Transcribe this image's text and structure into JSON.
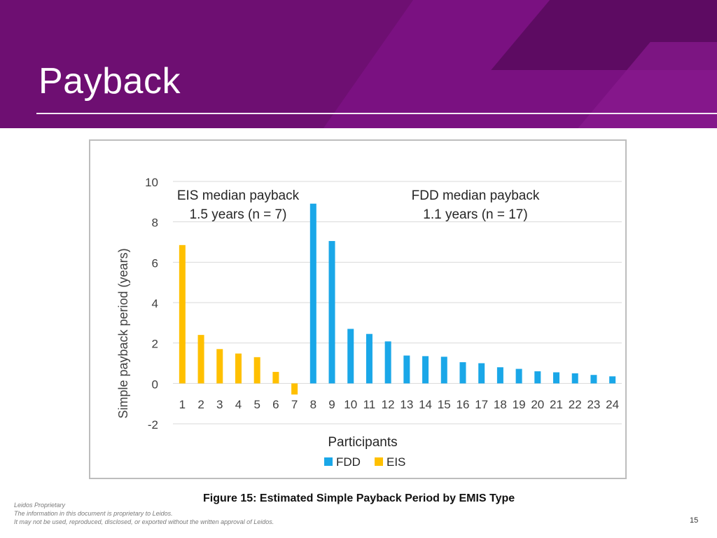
{
  "slide": {
    "title": "Payback",
    "caption": "Figure 15: Estimated Simple Payback Period by EMIS Type",
    "footer": {
      "line1": "Leidos Proprietary",
      "line2": "The information in this document is proprietary to Leidos.",
      "line3": "It may not be used, reproduced, disclosed, or exported without the written approval of Leidos."
    },
    "page_number": "15"
  },
  "colors": {
    "header": "#6e0f72",
    "fdd": "#1aa7e8",
    "eis": "#ffc000",
    "grid": "#d9d9d9",
    "text": "#404040"
  },
  "chart_data": {
    "type": "bar",
    "categories": [
      "1",
      "2",
      "3",
      "4",
      "5",
      "6",
      "7",
      "8",
      "9",
      "10",
      "11",
      "12",
      "13",
      "14",
      "15",
      "16",
      "17",
      "18",
      "19",
      "20",
      "21",
      "22",
      "23",
      "24"
    ],
    "series": [
      {
        "name": "EIS",
        "color": "#ffc000",
        "values": [
          6.85,
          2.4,
          1.7,
          1.48,
          1.3,
          0.57,
          -0.55,
          null,
          null,
          null,
          null,
          null,
          null,
          null,
          null,
          null,
          null,
          null,
          null,
          null,
          null,
          null,
          null,
          null
        ]
      },
      {
        "name": "FDD",
        "color": "#1aa7e8",
        "values": [
          null,
          null,
          null,
          null,
          null,
          null,
          null,
          8.9,
          7.05,
          2.7,
          2.45,
          2.08,
          1.38,
          1.35,
          1.32,
          1.05,
          1.0,
          0.8,
          0.72,
          0.6,
          0.55,
          0.5,
          0.42,
          0.35
        ]
      }
    ],
    "ylim": [
      -2,
      10
    ],
    "yticks": [
      "10",
      "8",
      "6",
      "4",
      "2",
      "0",
      "-2"
    ],
    "ylabel": "Simple payback period (years)",
    "xlabel": "Participants",
    "legend": [
      "FDD",
      "EIS"
    ],
    "annotations": {
      "eis_line1": "EIS median payback",
      "eis_line2": "1.5 years (n = 7)",
      "fdd_line1": "FDD median payback",
      "fdd_line2": "1.1 years (n = 17)"
    },
    "grid": true
  }
}
